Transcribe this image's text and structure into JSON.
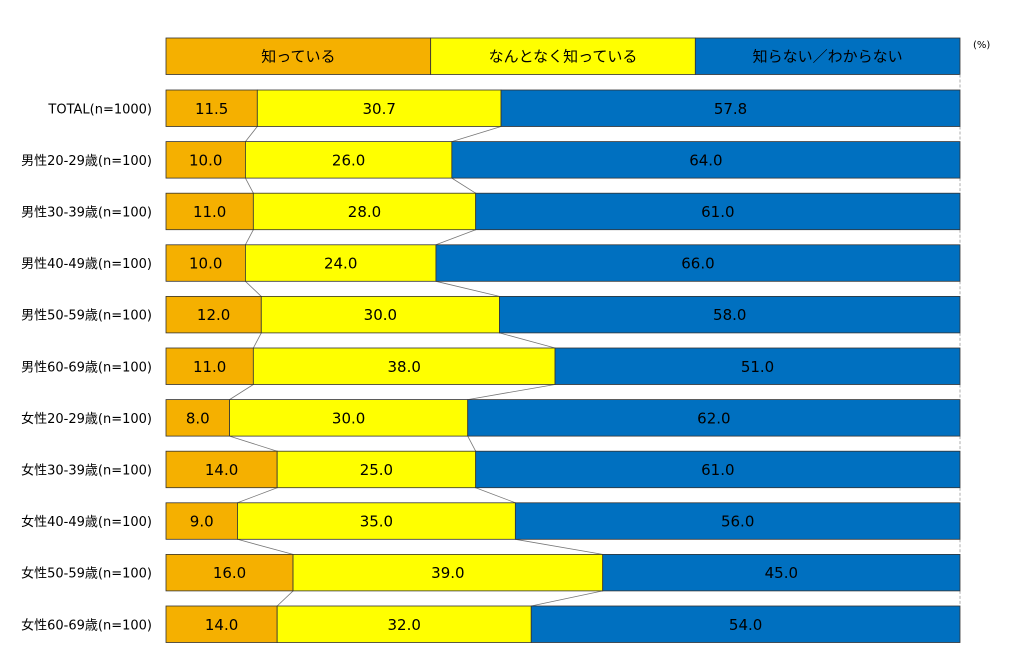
{
  "chart_data": {
    "type": "bar",
    "stacked": true,
    "orientation": "horizontal",
    "unit_label": "(%)",
    "xlim": [
      0,
      100
    ],
    "grid": false,
    "legend_position": "top",
    "categories": [
      "TOTAL(n=1000)",
      "男性20-29歳(n=100)",
      "男性30-39歳(n=100)",
      "男性40-49歳(n=100)",
      "男性50-59歳(n=100)",
      "男性60-69歳(n=100)",
      "女性20-29歳(n=100)",
      "女性30-39歳(n=100)",
      "女性40-49歳(n=100)",
      "女性50-59歳(n=100)",
      "女性60-69歳(n=100)"
    ],
    "series": [
      {
        "name": "知っている",
        "color": "#F5B000",
        "values": [
          11.5,
          10.0,
          11.0,
          10.0,
          12.0,
          11.0,
          8.0,
          14.0,
          9.0,
          16.0,
          14.0
        ],
        "labels": [
          "11.5",
          "10.0",
          "11.0",
          "10.0",
          "12.0",
          "11.0",
          "8.0",
          "14.0",
          "9.0",
          "16.0",
          "14.0"
        ]
      },
      {
        "name": "なんとなく知っている",
        "color": "#FFFF00",
        "values": [
          30.7,
          26.0,
          28.0,
          24.0,
          30.0,
          38.0,
          30.0,
          25.0,
          35.0,
          39.0,
          32.0
        ],
        "labels": [
          "30.7",
          "26.0",
          "28.0",
          "24.0",
          "30.0",
          "38.0",
          "30.0",
          "25.0",
          "35.0",
          "39.0",
          "32.0"
        ]
      },
      {
        "name": "知らない／わからない",
        "color": "#0070C0",
        "values": [
          57.8,
          64.0,
          61.0,
          66.0,
          58.0,
          51.0,
          62.0,
          61.0,
          56.0,
          45.0,
          54.0
        ],
        "labels": [
          "57.8",
          "64.0",
          "61.0",
          "66.0",
          "58.0",
          "51.0",
          "62.0",
          "61.0",
          "56.0",
          "45.0",
          "54.0"
        ]
      }
    ]
  }
}
